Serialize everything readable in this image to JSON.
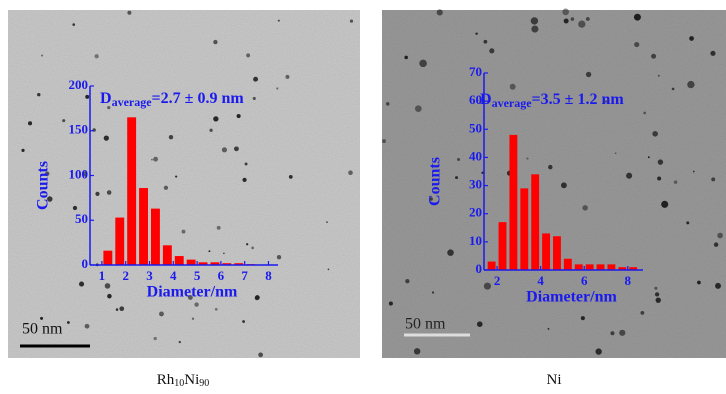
{
  "chart_data": [
    {
      "type": "histogram",
      "bins": [
        1,
        1.5,
        2,
        2.5,
        3,
        3.5,
        4,
        4.5,
        5,
        5.5,
        6,
        6.5,
        7,
        7.5
      ],
      "values": [
        16,
        53,
        165,
        86,
        63,
        22,
        10,
        6,
        3,
        3,
        2,
        2,
        1
      ],
      "color": "#ff0000",
      "xlim": [
        0.5,
        8.4
      ],
      "ylim": [
        0,
        200
      ],
      "xticks": [
        1,
        2,
        3,
        4,
        5,
        6,
        7,
        8
      ],
      "yticks": [
        0,
        50,
        100,
        150,
        200
      ],
      "xlabel": "Diameter/nm",
      "ylabel": "Counts",
      "annotation": [
        "D",
        "average",
        "=2.7 ± 0.9 nm"
      ],
      "scale_bar": "50 nm",
      "caption": [
        "Rh",
        "10",
        "Ni",
        "90"
      ]
    },
    {
      "type": "histogram",
      "bins": [
        1.5,
        2,
        2.5,
        3,
        3.5,
        4,
        4.5,
        5,
        5.5,
        6,
        6.5,
        7,
        7.5,
        8,
        8.5
      ],
      "values": [
        3,
        17,
        48,
        29,
        34,
        13,
        12,
        4,
        2,
        2,
        2,
        2,
        1,
        1
      ],
      "color": "#ff0000",
      "xlim": [
        1.4,
        8.7
      ],
      "ylim": [
        0,
        70
      ],
      "xticks": [
        2,
        4,
        6,
        8
      ],
      "yticks": [
        0,
        10,
        20,
        30,
        40,
        50,
        60,
        70
      ],
      "xlabel": "Diameter/nm",
      "ylabel": "Counts",
      "annotation": [
        "D",
        "average",
        "=3.5 ± 1.2 nm"
      ],
      "scale_bar": "50 nm",
      "caption": [
        "Ni"
      ]
    }
  ]
}
